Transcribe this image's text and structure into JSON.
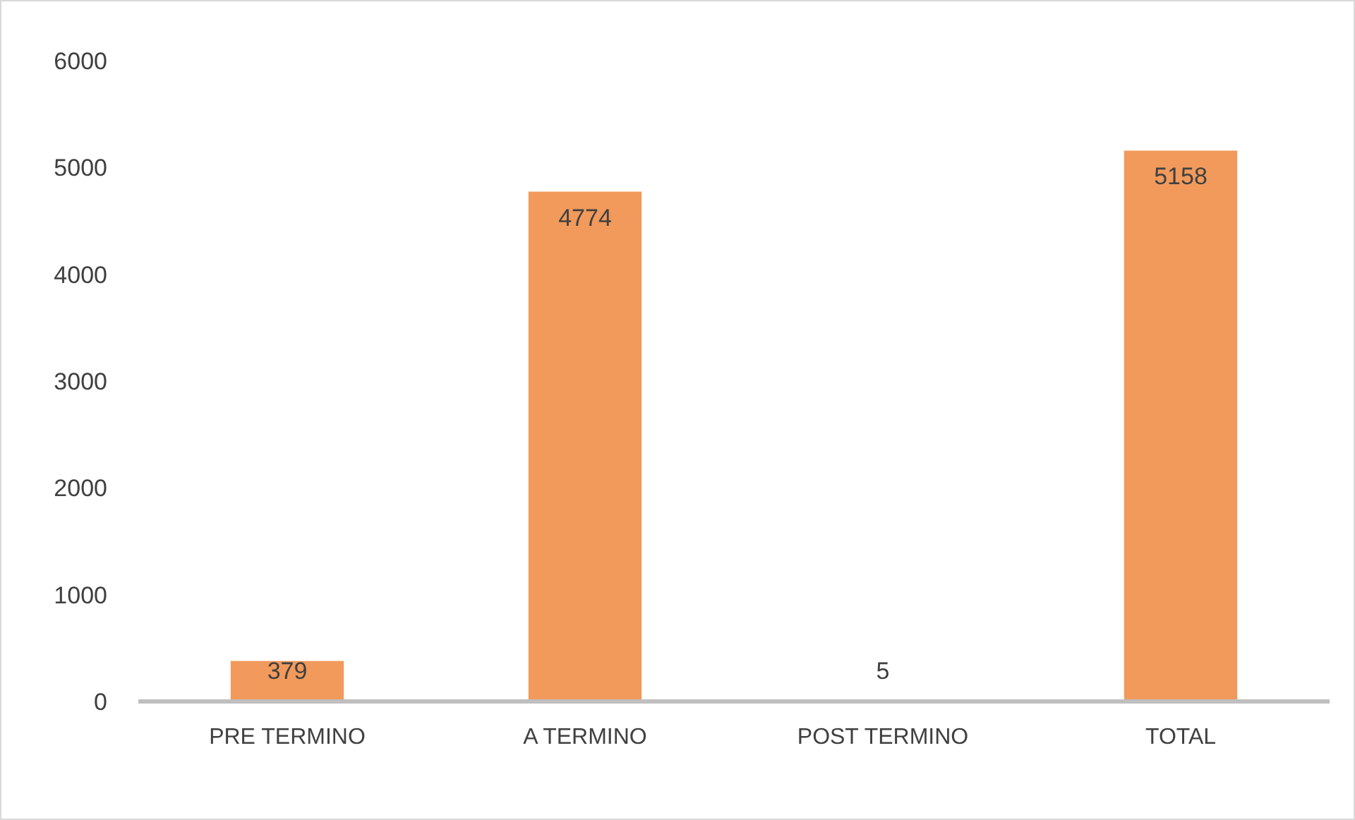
{
  "chart_data": {
    "type": "bar",
    "categories": [
      "PRE TERMINO",
      "A TERMINO",
      "POST TERMINO",
      "TOTAL"
    ],
    "values": [
      379,
      4774,
      5,
      5158
    ],
    "color": "#f19a5b",
    "ylim": [
      0,
      6000
    ],
    "yticks": [
      0,
      1000,
      2000,
      3000,
      4000,
      5000,
      6000
    ],
    "grid": false,
    "data_labels": true
  }
}
